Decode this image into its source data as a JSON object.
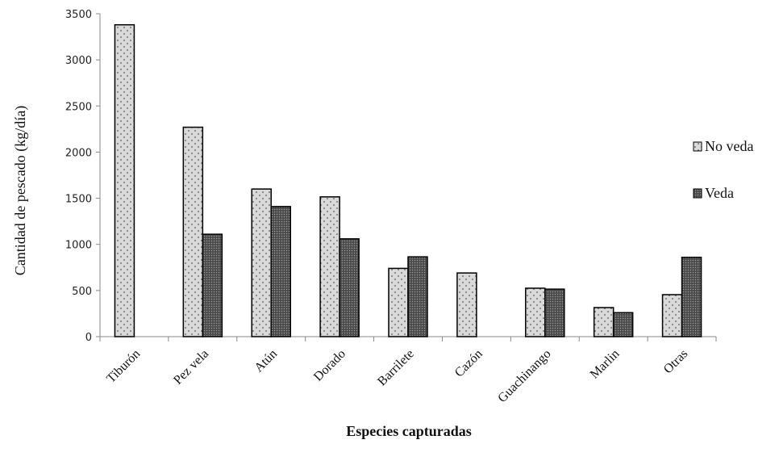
{
  "chart_data": {
    "type": "bar",
    "title": "",
    "xlabel": "Especies capturadas",
    "ylabel": "Cantidad de pescado (kg/día)",
    "ylim": [
      0,
      3500
    ],
    "yticks": [
      0,
      500,
      1000,
      1500,
      2000,
      2500,
      3000,
      3500
    ],
    "categories": [
      "Tiburón",
      "Pez vela",
      "Atún",
      "Dorado",
      "Barrilete",
      "Cazón",
      "Guachinango",
      "Marlin",
      "Otras"
    ],
    "series": [
      {
        "name": "No veda",
        "values": [
          3380,
          2270,
          1600,
          1515,
          740,
          690,
          525,
          315,
          455
        ],
        "color": "#d9d9d9",
        "pattern": "dots"
      },
      {
        "name": "Veda",
        "values": [
          null,
          1110,
          1410,
          1060,
          865,
          null,
          515,
          260,
          860
        ],
        "color": "#6e6e6e",
        "pattern": "dense-dots"
      }
    ],
    "legend_position": "right",
    "grid": false
  }
}
